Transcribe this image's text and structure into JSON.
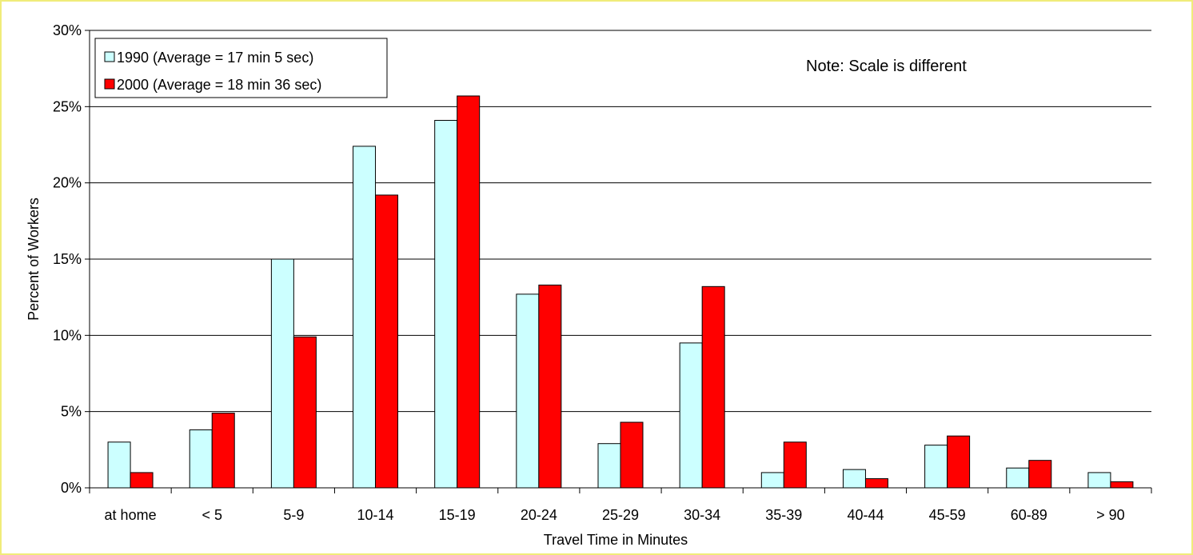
{
  "chart_data": {
    "type": "bar",
    "categories": [
      "at home",
      "< 5",
      "5-9",
      "10-14",
      "15-19",
      "20-24",
      "25-29",
      "30-34",
      "35-39",
      "40-44",
      "45-59",
      "60-89",
      "> 90"
    ],
    "series": [
      {
        "name": "1990 (Average = 17 min 5 sec)",
        "color": "#ccffff",
        "values": [
          3.0,
          3.8,
          15.0,
          22.4,
          24.1,
          12.7,
          2.9,
          9.5,
          1.0,
          1.2,
          2.8,
          1.3,
          1.0
        ]
      },
      {
        "name": "2000 (Average = 18 min 36 sec)",
        "color": "#ff0000",
        "values": [
          1.0,
          4.9,
          9.9,
          19.2,
          25.7,
          13.3,
          4.3,
          13.2,
          3.0,
          0.6,
          3.4,
          1.8,
          0.4
        ]
      }
    ],
    "xlabel": "Travel Time in Minutes",
    "ylabel": "Percent of Workers",
    "ylim": [
      0,
      30
    ],
    "yticks": [
      "0%",
      "5%",
      "10%",
      "15%",
      "20%",
      "25%",
      "30%"
    ],
    "grid": true,
    "legend_position": "top-left",
    "annotation": "Note: Scale is different"
  }
}
